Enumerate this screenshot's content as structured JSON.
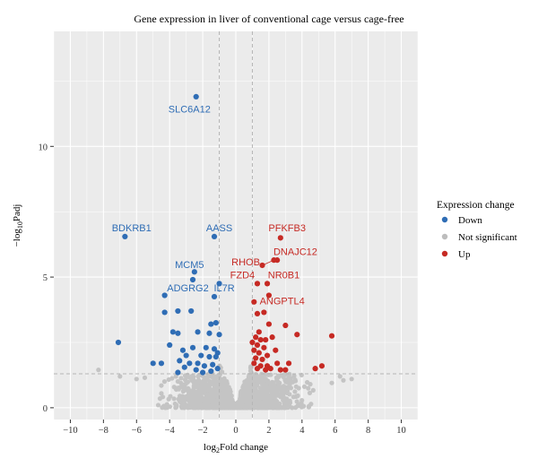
{
  "chart_data": {
    "type": "scatter",
    "title": "Gene expression in liver of conventional cage versus cage-free",
    "xlabel": "log",
    "xlabel_sub": "2",
    "xlabel_rest": "Fold change",
    "ylabel": "−log",
    "ylabel_sub": "10",
    "ylabel_rest": "Padj",
    "xlim": [
      -11,
      11
    ],
    "ylim": [
      -0.45,
      14.4
    ],
    "x_ticks": [
      -10,
      -8,
      -6,
      -4,
      -2,
      0,
      2,
      4,
      6,
      8,
      10
    ],
    "x_tick_labels": [
      "−10",
      "−8",
      "−6",
      "−4",
      "−2",
      "0",
      "2",
      "4",
      "6",
      "8",
      "10"
    ],
    "y_ticks": [
      0,
      5,
      10
    ],
    "y_tick_labels": [
      "0",
      "5",
      "10"
    ],
    "thresholds": {
      "fc": [
        -1,
        1
      ],
      "padj": 1.3
    },
    "grid": true,
    "legend": {
      "title": "Expression change",
      "placement": "right",
      "entries": [
        {
          "label": "Down",
          "color": "#2f6db5"
        },
        {
          "label": "Not significant",
          "color": "#bdbdbd"
        },
        {
          "label": "Up",
          "color": "#c62a24"
        }
      ]
    },
    "series": [
      {
        "key": "down",
        "color": "#2f6db5",
        "points": [
          [
            -2.4,
            11.9
          ],
          [
            -6.7,
            6.55
          ],
          [
            -1.3,
            6.55
          ],
          [
            -2.5,
            5.2
          ],
          [
            -2.6,
            4.9
          ],
          [
            -1.0,
            4.75
          ],
          [
            -4.3,
            4.3
          ],
          [
            -1.3,
            4.25
          ],
          [
            -4.3,
            3.65
          ],
          [
            -3.5,
            3.7
          ],
          [
            -2.7,
            3.7
          ],
          [
            -1.2,
            3.25
          ],
          [
            -1.5,
            3.2
          ],
          [
            -3.8,
            2.9
          ],
          [
            -3.5,
            2.85
          ],
          [
            -2.3,
            2.9
          ],
          [
            -1.6,
            2.85
          ],
          [
            -1.0,
            2.8
          ],
          [
            -4.0,
            2.4
          ],
          [
            -3.2,
            2.2
          ],
          [
            -2.6,
            2.3
          ],
          [
            -1.8,
            2.3
          ],
          [
            -1.3,
            2.25
          ],
          [
            -2.1,
            2.0
          ],
          [
            -1.6,
            1.95
          ],
          [
            -1.2,
            1.95
          ],
          [
            -4.5,
            1.7
          ],
          [
            -3.4,
            1.8
          ],
          [
            -2.8,
            1.7
          ],
          [
            -2.3,
            1.7
          ],
          [
            -1.9,
            1.6
          ],
          [
            -1.4,
            1.65
          ],
          [
            -3.1,
            1.55
          ],
          [
            -2.4,
            1.45
          ],
          [
            -1.1,
            1.5
          ],
          [
            -7.1,
            2.5
          ],
          [
            -5.0,
            1.7
          ],
          [
            -3.5,
            1.35
          ],
          [
            -2.0,
            1.35
          ],
          [
            -1.5,
            1.4
          ],
          [
            -3.0,
            2.0
          ],
          [
            -1.1,
            2.1
          ]
        ]
      },
      {
        "key": "up",
        "color": "#c62a24",
        "points": [
          [
            2.7,
            6.5
          ],
          [
            2.3,
            5.65
          ],
          [
            2.5,
            5.65
          ],
          [
            1.6,
            5.45
          ],
          [
            1.3,
            4.75
          ],
          [
            1.9,
            4.75
          ],
          [
            2.0,
            4.3
          ],
          [
            1.1,
            4.05
          ],
          [
            1.7,
            3.65
          ],
          [
            1.3,
            3.6
          ],
          [
            2.0,
            3.2
          ],
          [
            3.0,
            3.15
          ],
          [
            1.8,
            2.6
          ],
          [
            3.7,
            2.8
          ],
          [
            5.8,
            2.75
          ],
          [
            1.2,
            2.7
          ],
          [
            1.5,
            2.6
          ],
          [
            1.3,
            2.4
          ],
          [
            1.7,
            2.3
          ],
          [
            1.1,
            2.2
          ],
          [
            1.4,
            2.1
          ],
          [
            1.9,
            2.0
          ],
          [
            2.4,
            2.2
          ],
          [
            1.2,
            1.9
          ],
          [
            1.6,
            1.85
          ],
          [
            1.1,
            1.7
          ],
          [
            1.5,
            1.6
          ],
          [
            1.9,
            1.6
          ],
          [
            2.5,
            1.7
          ],
          [
            3.2,
            1.7
          ],
          [
            1.3,
            1.5
          ],
          [
            1.8,
            1.45
          ],
          [
            2.7,
            1.45
          ],
          [
            3.0,
            1.45
          ],
          [
            5.2,
            1.6
          ],
          [
            4.8,
            1.5
          ],
          [
            2.1,
            1.5
          ],
          [
            1.4,
            2.9
          ],
          [
            1.0,
            2.5
          ],
          [
            2.2,
            2.7
          ]
        ]
      }
    ],
    "labels": [
      {
        "text": "SLC6A12",
        "x": -2.8,
        "y": 11.3,
        "color": "#2f6db5"
      },
      {
        "text": "BDKRB1",
        "x": -6.3,
        "y": 6.75,
        "color": "#2f6db5"
      },
      {
        "text": "AASS",
        "x": -1.0,
        "y": 6.75,
        "color": "#2f6db5"
      },
      {
        "text": "MCM5",
        "x": -2.8,
        "y": 5.35,
        "color": "#2f6db5"
      },
      {
        "text": "ADGRG2",
        "x": -2.9,
        "y": 4.45,
        "color": "#2f6db5"
      },
      {
        "text": "IL7R",
        "x": -0.7,
        "y": 4.45,
        "color": "#2f6db5"
      },
      {
        "text": "PFKFB3",
        "x": 3.1,
        "y": 6.75,
        "color": "#c62a24"
      },
      {
        "text": "DNAJC12",
        "x": 3.6,
        "y": 5.85,
        "color": "#c62a24"
      },
      {
        "text": "RHOB",
        "x": 0.6,
        "y": 5.45,
        "color": "#c62a24"
      },
      {
        "text": "FZD4",
        "x": 0.4,
        "y": 4.95,
        "color": "#c62a24"
      },
      {
        "text": "NR0B1",
        "x": 2.9,
        "y": 4.95,
        "color": "#c62a24"
      },
      {
        "text": "ANGPTL4",
        "x": 2.8,
        "y": 3.95,
        "color": "#c62a24"
      }
    ],
    "label_leaders": [
      {
        "from": [
          1.6,
          5.45
        ],
        "to": [
          2.2,
          5.62
        ]
      }
    ]
  },
  "style": {
    "panel_bg": "#ebebeb",
    "grid_color": "#ffffff",
    "threshold_color": "#b5b5b5",
    "ns_color": "#c4c4c4"
  }
}
